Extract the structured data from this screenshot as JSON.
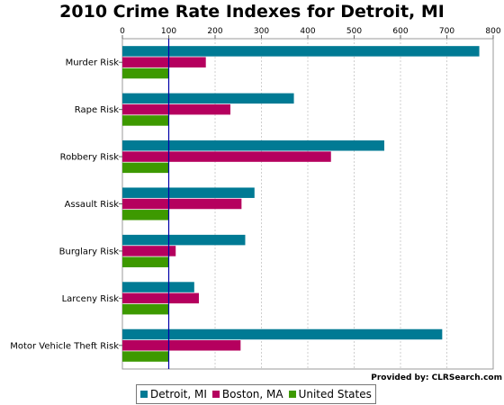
{
  "chart_data": {
    "type": "bar",
    "orientation": "horizontal",
    "title": "2010 Crime Rate Indexes for Detroit, MI",
    "categories": [
      "Murder Risk",
      "Rape Risk",
      "Robbery Risk",
      "Assault Risk",
      "Burglary Risk",
      "Larceny Risk",
      "Motor Vehicle Theft Risk"
    ],
    "series": [
      {
        "name": "Detroit, MI",
        "color": "#007a94",
        "values": [
          770,
          370,
          565,
          285,
          265,
          155,
          690
        ]
      },
      {
        "name": "Boston, MA",
        "color": "#b5005e",
        "values": [
          180,
          233,
          450,
          257,
          115,
          165,
          255
        ]
      },
      {
        "name": "United States",
        "color": "#3d9900",
        "values": [
          100,
          100,
          100,
          100,
          100,
          100,
          100
        ]
      }
    ],
    "xlim": [
      0,
      800
    ],
    "xticks": [
      0,
      100,
      200,
      300,
      400,
      500,
      600,
      700,
      800
    ],
    "reference_line": {
      "value": 100,
      "color": "#0000aa"
    },
    "grid": true,
    "legend_position": "bottom"
  },
  "credit": "Provided by: CLRSearch.com"
}
